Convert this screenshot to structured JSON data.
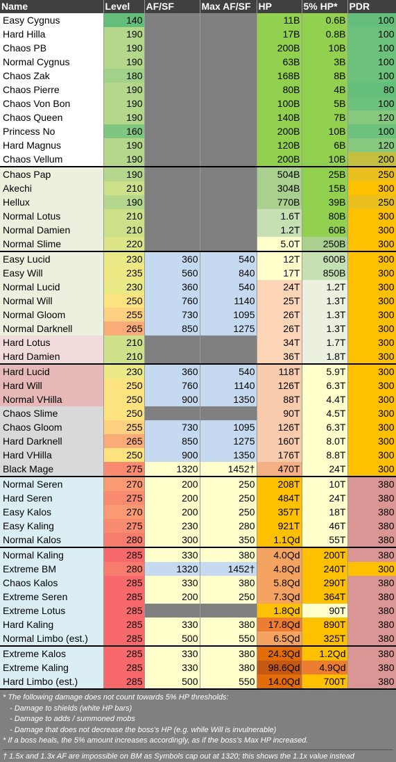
{
  "headers": [
    "Name",
    "Level",
    "AF/SF",
    "Max AF/SF",
    "HP",
    "5% HP*",
    "PDR"
  ],
  "colors": {
    "grey": "#808080",
    "blue": "#c5d9f1",
    "yellow": "#ffffcc",
    "greenName": "#ffffff",
    "lightGreenName": "#ebf1de",
    "pinkName": "#f2dcdb",
    "redName": "#e6b8b7",
    "greyName": "#d9d9d9",
    "cyanName": "#daeef3"
  },
  "rows": [
    {
      "name": "Easy Cygnus",
      "level": "140",
      "af": "",
      "maxaf": "",
      "hp": "11B",
      "hp5": "0.6B",
      "pdr": "100",
      "nameBg": "#ffffff",
      "levelBg": "#63be7b",
      "afBg": "#808080",
      "hpBg": "#92d050",
      "hp5Bg": "#92d050",
      "pdrBg": "#63be7b",
      "sep": false
    },
    {
      "name": "Hard Hilla",
      "level": "190",
      "af": "",
      "maxaf": "",
      "hp": "17B",
      "hp5": "0.8B",
      "pdr": "100",
      "nameBg": "#ffffff",
      "levelBg": "#b5d78c",
      "afBg": "#808080",
      "hpBg": "#92d050",
      "hp5Bg": "#92d050",
      "pdrBg": "#6cc17c",
      "sep": false
    },
    {
      "name": "Chaos PB",
      "level": "190",
      "af": "",
      "maxaf": "",
      "hp": "200B",
      "hp5": "10B",
      "pdr": "100",
      "nameBg": "#ffffff",
      "levelBg": "#b5d78c",
      "afBg": "#808080",
      "hpBg": "#92d050",
      "hp5Bg": "#92d050",
      "pdrBg": "#6cc17c",
      "sep": false
    },
    {
      "name": "Normal Cygnus",
      "level": "190",
      "af": "",
      "maxaf": "",
      "hp": "63B",
      "hp5": "3B",
      "pdr": "100",
      "nameBg": "#ffffff",
      "levelBg": "#b5d78c",
      "afBg": "#808080",
      "hpBg": "#92d050",
      "hp5Bg": "#92d050",
      "pdrBg": "#6cc17c",
      "sep": false
    },
    {
      "name": "Chaos Zak",
      "level": "180",
      "af": "",
      "maxaf": "",
      "hp": "168B",
      "hp5": "8B",
      "pdr": "100",
      "nameBg": "#ffffff",
      "levelBg": "#a2d189",
      "afBg": "#808080",
      "hpBg": "#92d050",
      "hp5Bg": "#92d050",
      "pdrBg": "#6cc17c",
      "sep": false
    },
    {
      "name": "Chaos Pierre",
      "level": "190",
      "af": "",
      "maxaf": "",
      "hp": "80B",
      "hp5": "4B",
      "pdr": "80",
      "nameBg": "#ffffff",
      "levelBg": "#b5d78c",
      "afBg": "#808080",
      "hpBg": "#92d050",
      "hp5Bg": "#92d050",
      "pdrBg": "#63be7b",
      "sep": false
    },
    {
      "name": "Chaos Von Bon",
      "level": "190",
      "af": "",
      "maxaf": "",
      "hp": "100B",
      "hp5": "5B",
      "pdr": "100",
      "nameBg": "#ffffff",
      "levelBg": "#b5d78c",
      "afBg": "#808080",
      "hpBg": "#92d050",
      "hp5Bg": "#92d050",
      "pdrBg": "#6cc17c",
      "sep": false
    },
    {
      "name": "Chaos Queen",
      "level": "190",
      "af": "",
      "maxaf": "",
      "hp": "140B",
      "hp5": "7B",
      "pdr": "120",
      "nameBg": "#ffffff",
      "levelBg": "#b5d78c",
      "afBg": "#808080",
      "hpBg": "#92d050",
      "hp5Bg": "#92d050",
      "pdrBg": "#86c87e",
      "sep": false
    },
    {
      "name": "Princess No",
      "level": "160",
      "af": "",
      "maxaf": "",
      "hp": "200B",
      "hp5": "10B",
      "pdr": "100",
      "nameBg": "#ffffff",
      "levelBg": "#7fc680",
      "afBg": "#808080",
      "hpBg": "#92d050",
      "hp5Bg": "#92d050",
      "pdrBg": "#6cc17c",
      "sep": false
    },
    {
      "name": "Hard Magnus",
      "level": "190",
      "af": "",
      "maxaf": "",
      "hp": "120B",
      "hp5": "6B",
      "pdr": "120",
      "nameBg": "#ffffff",
      "levelBg": "#b5d78c",
      "afBg": "#808080",
      "hpBg": "#92d050",
      "hp5Bg": "#92d050",
      "pdrBg": "#86c87e",
      "sep": false
    },
    {
      "name": "Chaos Vellum",
      "level": "190",
      "af": "",
      "maxaf": "",
      "hp": "200B",
      "hp5": "10B",
      "pdr": "200",
      "nameBg": "#ffffff",
      "levelBg": "#b5d78c",
      "afBg": "#808080",
      "hpBg": "#92d050",
      "hp5Bg": "#92d050",
      "pdrBg": "#c4bf3e",
      "sep": false
    },
    {
      "name": "Chaos Pap",
      "level": "190",
      "af": "",
      "maxaf": "",
      "hp": "504B",
      "hp5": "25B",
      "pdr": "250",
      "nameBg": "#ebf1de",
      "levelBg": "#b5d78c",
      "afBg": "#808080",
      "hpBg": "#a9d08e",
      "hp5Bg": "#92d050",
      "pdrBg": "#e8bf1e",
      "sep": true
    },
    {
      "name": "Akechi",
      "level": "210",
      "af": "",
      "maxaf": "",
      "hp": "304B",
      "hp5": "15B",
      "pdr": "300",
      "nameBg": "#ebf1de",
      "levelBg": "#cde08a",
      "afBg": "#808080",
      "hpBg": "#a9d08e",
      "hp5Bg": "#92d050",
      "pdrBg": "#ffc000",
      "sep": false
    },
    {
      "name": "Hellux",
      "level": "190",
      "af": "",
      "maxaf": "",
      "hp": "770B",
      "hp5": "39B",
      "pdr": "250",
      "nameBg": "#ebf1de",
      "levelBg": "#b5d78c",
      "afBg": "#808080",
      "hpBg": "#a9d08e",
      "hp5Bg": "#92d050",
      "pdrBg": "#e8bf1e",
      "sep": false
    },
    {
      "name": "Normal Lotus",
      "level": "210",
      "af": "",
      "maxaf": "",
      "hp": "1.6T",
      "hp5": "80B",
      "pdr": "300",
      "nameBg": "#ebf1de",
      "levelBg": "#cde08a",
      "afBg": "#808080",
      "hpBg": "#c6e0b4",
      "hp5Bg": "#92d050",
      "pdrBg": "#ffc000",
      "sep": false
    },
    {
      "name": "Normal Damien",
      "level": "210",
      "af": "",
      "maxaf": "",
      "hp": "1.2T",
      "hp5": "60B",
      "pdr": "300",
      "nameBg": "#ebf1de",
      "levelBg": "#cde08a",
      "afBg": "#808080",
      "hpBg": "#c6e0b4",
      "hp5Bg": "#92d050",
      "pdrBg": "#ffc000",
      "sep": false
    },
    {
      "name": "Normal Slime",
      "level": "220",
      "af": "",
      "maxaf": "",
      "hp": "5.0T",
      "hp5": "250B",
      "pdr": "300",
      "nameBg": "#ebf1de",
      "levelBg": "#dbe588",
      "afBg": "#808080",
      "hpBg": "#ffffcc",
      "hp5Bg": "#a9d08e",
      "pdrBg": "#ffc000",
      "sep": false
    },
    {
      "name": "Easy Lucid",
      "level": "230",
      "af": "360",
      "maxaf": "540",
      "hp": "12T",
      "hp5": "600B",
      "pdr": "300",
      "nameBg": "#ebf1de",
      "levelBg": "#e9e986",
      "afBg": "#c5d9f1",
      "hpBg": "#ffffcc",
      "hp5Bg": "#c6e0b4",
      "pdrBg": "#ffc000",
      "sep": true
    },
    {
      "name": "Easy Will",
      "level": "235",
      "af": "560",
      "maxaf": "840",
      "hp": "17T",
      "hp5": "850B",
      "pdr": "300",
      "nameBg": "#ebf1de",
      "levelBg": "#efe784",
      "afBg": "#c5d9f1",
      "hpBg": "#ffffcc",
      "hp5Bg": "#c6e0b4",
      "pdrBg": "#ffc000",
      "sep": false
    },
    {
      "name": "Normal Lucid",
      "level": "230",
      "af": "360",
      "maxaf": "540",
      "hp": "24T",
      "hp5": "1.2T",
      "pdr": "300",
      "nameBg": "#ebf1de",
      "levelBg": "#e9e986",
      "afBg": "#c5d9f1",
      "hpBg": "#fbd5b5",
      "hp5Bg": "#ebf1de",
      "pdrBg": "#ffc000",
      "sep": false
    },
    {
      "name": "Normal Will",
      "level": "250",
      "af": "760",
      "maxaf": "1140",
      "hp": "25T",
      "hp5": "1.3T",
      "pdr": "300",
      "nameBg": "#ebf1de",
      "levelBg": "#fde380",
      "afBg": "#c5d9f1",
      "hpBg": "#fbd5b5",
      "hp5Bg": "#ebf1de",
      "pdrBg": "#ffc000",
      "sep": false
    },
    {
      "name": "Normal Gloom",
      "level": "255",
      "af": "730",
      "maxaf": "1095",
      "hp": "26T",
      "hp5": "1.3T",
      "pdr": "300",
      "nameBg": "#ebf1de",
      "levelBg": "#fdd17f",
      "afBg": "#c5d9f1",
      "hpBg": "#fbd5b5",
      "hp5Bg": "#ebf1de",
      "pdrBg": "#ffc000",
      "sep": false
    },
    {
      "name": "Normal Darknell",
      "level": "265",
      "af": "850",
      "maxaf": "1275",
      "hp": "26T",
      "hp5": "1.3T",
      "pdr": "300",
      "nameBg": "#ebf1de",
      "levelBg": "#fbab77",
      "afBg": "#c5d9f1",
      "hpBg": "#fbd5b5",
      "hp5Bg": "#ebf1de",
      "pdrBg": "#ffc000",
      "sep": false
    },
    {
      "name": "Hard Lotus",
      "level": "210",
      "af": "",
      "maxaf": "",
      "hp": "34T",
      "hp5": "1.7T",
      "pdr": "300",
      "nameBg": "#f2dcdb",
      "levelBg": "#cde08a",
      "afBg": "#808080",
      "hpBg": "#fbd5b5",
      "hp5Bg": "#ebf1de",
      "pdrBg": "#ffc000",
      "sep": false
    },
    {
      "name": "Hard Damien",
      "level": "210",
      "af": "",
      "maxaf": "",
      "hp": "36T",
      "hp5": "1.8T",
      "pdr": "300",
      "nameBg": "#f2dcdb",
      "levelBg": "#cde08a",
      "afBg": "#808080",
      "hpBg": "#fbd5b5",
      "hp5Bg": "#ebf1de",
      "pdrBg": "#ffc000",
      "sep": false
    },
    {
      "name": "Hard Lucid",
      "level": "230",
      "af": "360",
      "maxaf": "540",
      "hp": "118T",
      "hp5": "5.9T",
      "pdr": "300",
      "nameBg": "#e6b8b7",
      "levelBg": "#e9e986",
      "afBg": "#c5d9f1",
      "hpBg": "#f8cbad",
      "hp5Bg": "#ffffcc",
      "pdrBg": "#ffc000",
      "sep": true
    },
    {
      "name": "Hard Will",
      "level": "250",
      "af": "760",
      "maxaf": "1140",
      "hp": "126T",
      "hp5": "6.3T",
      "pdr": "300",
      "nameBg": "#e6b8b7",
      "levelBg": "#fde380",
      "afBg": "#c5d9f1",
      "hpBg": "#f8cbad",
      "hp5Bg": "#ffffcc",
      "pdrBg": "#ffc000",
      "sep": false
    },
    {
      "name": "Normal VHilla",
      "level": "250",
      "af": "900",
      "maxaf": "1350",
      "hp": "88T",
      "hp5": "4.4T",
      "pdr": "300",
      "nameBg": "#e6b8b7",
      "levelBg": "#fde380",
      "afBg": "#c5d9f1",
      "hpBg": "#f8cbad",
      "hp5Bg": "#ffffcc",
      "pdrBg": "#ffc000",
      "sep": false
    },
    {
      "name": "Chaos Slime",
      "level": "250",
      "af": "",
      "maxaf": "",
      "hp": "90T",
      "hp5": "4.5T",
      "pdr": "300",
      "nameBg": "#d9d9d9",
      "levelBg": "#fde380",
      "afBg": "#808080",
      "hpBg": "#f8cbad",
      "hp5Bg": "#ffffcc",
      "pdrBg": "#ffc000",
      "sep": false
    },
    {
      "name": "Chaos Gloom",
      "level": "255",
      "af": "730",
      "maxaf": "1095",
      "hp": "126T",
      "hp5": "6.3T",
      "pdr": "300",
      "nameBg": "#d9d9d9",
      "levelBg": "#fdd17f",
      "afBg": "#c5d9f1",
      "hpBg": "#f8cbad",
      "hp5Bg": "#ffffcc",
      "pdrBg": "#ffc000",
      "sep": false
    },
    {
      "name": "Hard Darknell",
      "level": "265",
      "af": "850",
      "maxaf": "1275",
      "hp": "160T",
      "hp5": "8.0T",
      "pdr": "300",
      "nameBg": "#d9d9d9",
      "levelBg": "#fbab77",
      "afBg": "#c5d9f1",
      "hpBg": "#f8cbad",
      "hp5Bg": "#ffffcc",
      "pdrBg": "#ffc000",
      "sep": false
    },
    {
      "name": "Hard VHilla",
      "level": "250",
      "af": "900",
      "maxaf": "1350",
      "hp": "176T",
      "hp5": "8.8T",
      "pdr": "300",
      "nameBg": "#d9d9d9",
      "levelBg": "#fde380",
      "afBg": "#c5d9f1",
      "hpBg": "#f8cbad",
      "hp5Bg": "#ffffcc",
      "pdrBg": "#ffc000",
      "sep": false
    },
    {
      "name": "Black Mage",
      "level": "275",
      "af": "1320",
      "maxaf": "1452†",
      "hp": "470T",
      "hp5": "24T",
      "pdr": "300",
      "nameBg": "#d9d9d9",
      "levelBg": "#f98b70",
      "afBg": "#ffffcc",
      "hpBg": "#f4b084",
      "hp5Bg": "#ffffcc",
      "pdrBg": "#ffc000",
      "sep": false
    },
    {
      "name": "Normal Seren",
      "level": "270",
      "af": "200",
      "maxaf": "250",
      "hp": "208T",
      "hp5": "10T",
      "pdr": "380",
      "nameBg": "#daeef3",
      "levelBg": "#fa9a73",
      "afBg": "#ffffcc",
      "hpBg": "#ffc000",
      "hp5Bg": "#ffffcc",
      "pdrBg": "#da9694",
      "sep": true
    },
    {
      "name": "Hard Seren",
      "level": "275",
      "af": "200",
      "maxaf": "250",
      "hp": "484T",
      "hp5": "24T",
      "pdr": "380",
      "nameBg": "#daeef3",
      "levelBg": "#f98b70",
      "afBg": "#ffffcc",
      "hpBg": "#ffc000",
      "hp5Bg": "#ffffcc",
      "pdrBg": "#da9694",
      "sep": false
    },
    {
      "name": "Easy Kalos",
      "level": "270",
      "af": "200",
      "maxaf": "250",
      "hp": "357T",
      "hp5": "18T",
      "pdr": "380",
      "nameBg": "#daeef3",
      "levelBg": "#fa9a73",
      "afBg": "#ffffcc",
      "hpBg": "#ffc000",
      "hp5Bg": "#ffffcc",
      "pdrBg": "#da9694",
      "sep": false
    },
    {
      "name": "Easy Kaling",
      "level": "275",
      "af": "230",
      "maxaf": "280",
      "hp": "921T",
      "hp5": "46T",
      "pdr": "380",
      "nameBg": "#daeef3",
      "levelBg": "#f98b70",
      "afBg": "#ffffcc",
      "hpBg": "#ffc000",
      "hp5Bg": "#ffffcc",
      "pdrBg": "#da9694",
      "sep": false
    },
    {
      "name": "Normal Kalos",
      "level": "280",
      "af": "300",
      "maxaf": "350",
      "hp": "1.1Qd",
      "hp5": "55T",
      "pdr": "380",
      "nameBg": "#daeef3",
      "levelBg": "#f87c6d",
      "afBg": "#ffffcc",
      "hpBg": "#ffc000",
      "hp5Bg": "#ffffcc",
      "pdrBg": "#da9694",
      "sep": false
    },
    {
      "name": "Normal Kaling",
      "level": "285",
      "af": "330",
      "maxaf": "380",
      "hp": "4.0Qd",
      "hp5": "200T",
      "pdr": "380",
      "nameBg": "#daeef3",
      "levelBg": "#f8696b",
      "afBg": "#ffffcc",
      "hpBg": "#f4a460",
      "hp5Bg": "#ffc000",
      "pdrBg": "#da9694",
      "sep": true
    },
    {
      "name": "Extreme BM",
      "level": "280",
      "af": "1320",
      "maxaf": "1452†",
      "hp": "4.8Qd",
      "hp5": "240T",
      "pdr": "300",
      "nameBg": "#daeef3",
      "levelBg": "#f87c6d",
      "afBg": "#c5d9f1",
      "hpBg": "#f4a460",
      "hp5Bg": "#ffc000",
      "pdrBg": "#ffc000",
      "sep": false
    },
    {
      "name": "Chaos Kalos",
      "level": "285",
      "af": "330",
      "maxaf": "380",
      "hp": "5.8Qd",
      "hp5": "290T",
      "pdr": "380",
      "nameBg": "#daeef3",
      "levelBg": "#f8696b",
      "afBg": "#ffffcc",
      "hpBg": "#f4a460",
      "hp5Bg": "#ffc000",
      "pdrBg": "#da9694",
      "sep": false
    },
    {
      "name": "Extreme Seren",
      "level": "285",
      "af": "200",
      "maxaf": "250",
      "hp": "7.3Qd",
      "hp5": "364T",
      "pdr": "380",
      "nameBg": "#daeef3",
      "levelBg": "#f8696b",
      "afBg": "#ffffcc",
      "hpBg": "#f4a460",
      "hp5Bg": "#ffc000",
      "pdrBg": "#da9694",
      "sep": false
    },
    {
      "name": "Extreme Lotus",
      "level": "285",
      "af": "",
      "maxaf": "",
      "hp": "1.8Qd",
      "hp5": "90T",
      "pdr": "380",
      "nameBg": "#daeef3",
      "levelBg": "#f8696b",
      "afBg": "#808080",
      "hpBg": "#ffc000",
      "hp5Bg": "#ffffcc",
      "pdrBg": "#da9694",
      "sep": false
    },
    {
      "name": "Hard Kaling",
      "level": "285",
      "af": "330",
      "maxaf": "380",
      "hp": "17.8Qd",
      "hp5": "890T",
      "pdr": "380",
      "nameBg": "#daeef3",
      "levelBg": "#f8696b",
      "afBg": "#ffffcc",
      "hpBg": "#ed7d31",
      "hp5Bg": "#ffc000",
      "pdrBg": "#da9694",
      "sep": false
    },
    {
      "name": "Normal Limbo (est.)",
      "level": "285",
      "af": "500",
      "maxaf": "550",
      "hp": "6.5Qd",
      "hp5": "325T",
      "pdr": "380",
      "nameBg": "#daeef3",
      "levelBg": "#f8696b",
      "afBg": "#ffffcc",
      "hpBg": "#f4a460",
      "hp5Bg": "#ffc000",
      "pdrBg": "#da9694",
      "sep": false
    },
    {
      "name": "Extreme Kalos",
      "level": "285",
      "af": "330",
      "maxaf": "380",
      "hp": "24.3Qd",
      "hp5": "1.2Qd",
      "pdr": "380",
      "nameBg": "#daeef3",
      "levelBg": "#f8696b",
      "afBg": "#ffffcc",
      "hpBg": "#e26b0a",
      "hp5Bg": "#ffc000",
      "pdrBg": "#da9694",
      "sep": true
    },
    {
      "name": "Extreme Kaling",
      "level": "285",
      "af": "330",
      "maxaf": "380",
      "hp": "98.6Qd",
      "hp5": "4.9Qd",
      "pdr": "380",
      "nameBg": "#daeef3",
      "levelBg": "#f8696b",
      "afBg": "#ffffcc",
      "hpBg": "#c65911",
      "hp5Bg": "#ed7d31",
      "pdrBg": "#da9694",
      "sep": false
    },
    {
      "name": "Hard Limbo (est.)",
      "level": "285",
      "af": "500",
      "maxaf": "550",
      "hp": "14.0Qd",
      "hp5": "700T",
      "pdr": "380",
      "nameBg": "#daeef3",
      "levelBg": "#f8696b",
      "afBg": "#ffffcc",
      "hpBg": "#e26b0a",
      "hp5Bg": "#ffc000",
      "pdrBg": "#da9694",
      "sep": false
    }
  ],
  "notes": {
    "n1": "* The following damage does not count towards 5% HP thresholds:",
    "n2": "- Damage to shields (white HP bars)",
    "n3": "- Damage to adds / summoned mobs",
    "n4": "- Damage that does not decrease the boss's HP (e.g. while Will is invulnerable)",
    "n5": "* If a boss heals, the 5% amount increases accordingly, as if the boss's Max HP increased.",
    "n6": "† 1.5x and 1.3x AF are impossible on BM as Symbols cap out at 1320; this shows the 1.1x value instead"
  }
}
